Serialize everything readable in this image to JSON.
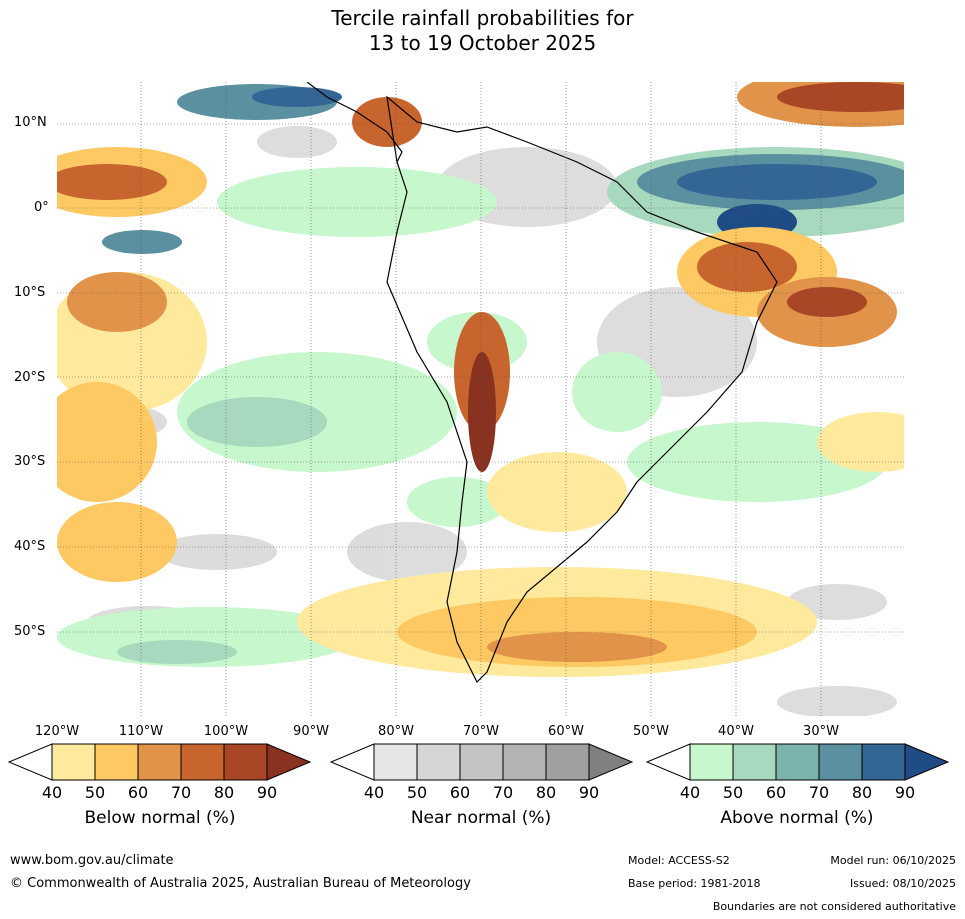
{
  "title": {
    "line1": "Tercile rainfall probabilities for",
    "line2": "13 to 19 October 2025"
  },
  "lat_labels": [
    "10°N",
    "0°",
    "10°S",
    "20°S",
    "30°S",
    "40°S",
    "50°S"
  ],
  "lon_labels": [
    "120°W",
    "110°W",
    "100°W",
    "90°W",
    "80°W",
    "70°W",
    "60°W",
    "50°W",
    "40°W",
    "30°W"
  ],
  "colorbars": [
    {
      "name": "below",
      "title": "Below normal (%)",
      "ticks": [
        "40",
        "50",
        "60",
        "70",
        "80",
        "90"
      ],
      "colors": [
        "#ffffff",
        "#ffe99c",
        "#fec962",
        "#e09349",
        "#c8652f",
        "#a84626",
        "#8a3220"
      ]
    },
    {
      "name": "near",
      "title": "Near normal (%)",
      "ticks": [
        "40",
        "50",
        "60",
        "70",
        "80",
        "90"
      ],
      "colors": [
        "#ffffff",
        "#e6e6e6",
        "#d6d6d6",
        "#c4c4c4",
        "#b3b3b3",
        "#a0a0a0",
        "#808080"
      ]
    },
    {
      "name": "above",
      "title": "Above normal (%)",
      "ticks": [
        "40",
        "50",
        "60",
        "70",
        "80",
        "90"
      ],
      "colors": [
        "#ffffff",
        "#c7f7cc",
        "#a6d9bd",
        "#7cb4ad",
        "#5b90a1",
        "#336595",
        "#1f4c84"
      ]
    }
  ],
  "footer": {
    "website": "www.bom.gov.au/climate",
    "copyright": "© Commonwealth of Australia 2025, Australian Bureau of Meteorology",
    "model": "Model: ACCESS-S2",
    "model_run": "Model run: 06/10/2025",
    "base_period": "Base period: 1981-2018",
    "issued": "Issued: 08/10/2025",
    "disclaimer": "Boundaries are not considered authoritative"
  }
}
